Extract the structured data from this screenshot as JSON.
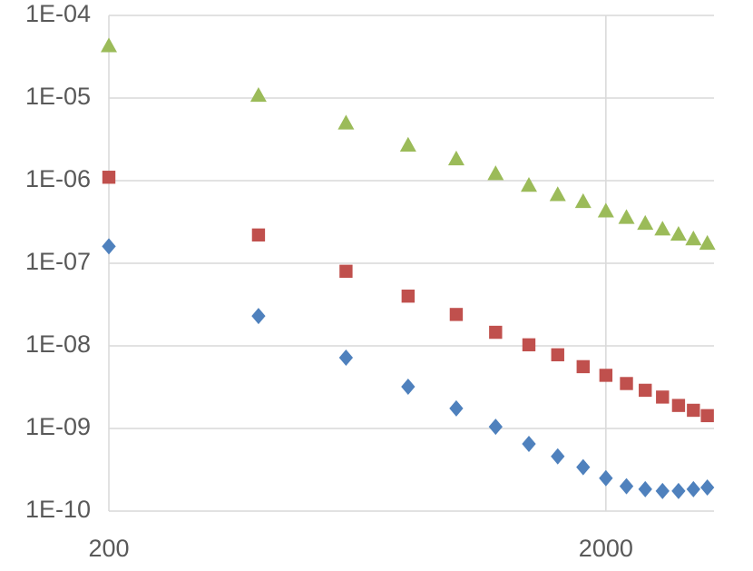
{
  "chart_data": {
    "type": "scatter",
    "x": [
      200,
      400,
      600,
      800,
      1000,
      1200,
      1400,
      1600,
      1800,
      2000,
      2200,
      2400,
      2600,
      2800,
      3000,
      3200
    ],
    "xlim": [
      200,
      3300
    ],
    "xticks": [
      200,
      2000
    ],
    "xlog": true,
    "ylim": [
      1e-10,
      0.0001
    ],
    "ylog": true,
    "yticks": [
      {
        "value": 1e-10,
        "label": "1E-10"
      },
      {
        "value": 1e-09,
        "label": "1E-09"
      },
      {
        "value": 1e-08,
        "label": "1E-08"
      },
      {
        "value": 1e-07,
        "label": "1E-07"
      },
      {
        "value": 1e-06,
        "label": "1E-06"
      },
      {
        "value": 1e-05,
        "label": "1E-05"
      },
      {
        "value": 0.0001,
        "label": "1E-04"
      }
    ],
    "grid": true,
    "series": [
      {
        "color": "#9bbb59",
        "marker": "triangle",
        "values": [
          4.3e-05,
          1.08e-05,
          5e-06,
          2.7e-06,
          1.84e-06,
          1.22e-06,
          8.8e-07,
          6.8e-07,
          5.6e-07,
          4.3e-07,
          3.6e-07,
          3.05e-07,
          2.6e-07,
          2.25e-07,
          1.98e-07,
          1.75e-07
        ]
      },
      {
        "color": "#c0504d",
        "marker": "square",
        "values": [
          1.1e-06,
          2.2e-07,
          8e-08,
          4e-08,
          2.4e-08,
          1.46e-08,
          1.03e-08,
          7.8e-09,
          5.6e-09,
          4.4e-09,
          3.5e-09,
          2.9e-09,
          2.4e-09,
          1.9e-09,
          1.66e-09,
          1.43e-09
        ]
      },
      {
        "color": "#4f81bd",
        "marker": "diamond",
        "values": [
          1.6e-07,
          2.3e-08,
          7.2e-09,
          3.2e-09,
          1.75e-09,
          1.05e-09,
          6.5e-10,
          4.6e-10,
          3.4e-10,
          2.5e-10,
          2e-10,
          1.84e-10,
          1.75e-10,
          1.75e-10,
          1.84e-10,
          1.93e-10
        ]
      }
    ]
  }
}
